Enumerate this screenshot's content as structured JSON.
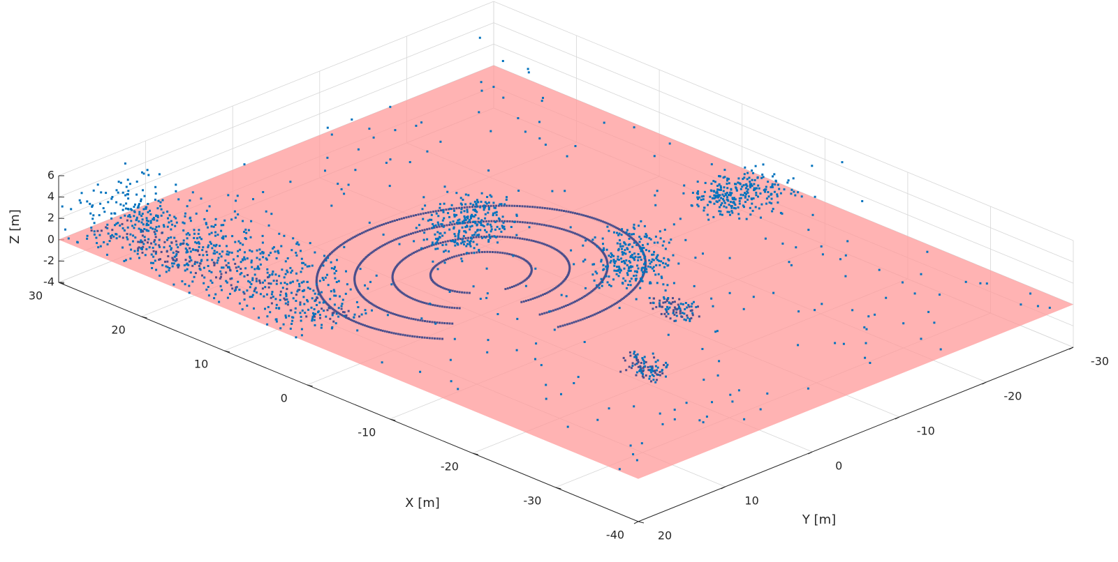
{
  "chart_data": {
    "type": "scatter",
    "title": "",
    "xlabel": "X [m]",
    "ylabel": "Y [m]",
    "zlabel": "Z [m]",
    "xlim": [
      -40,
      30
    ],
    "ylim": [
      -30,
      20
    ],
    "zlim": [
      -4,
      6
    ],
    "xticks": [
      "-40",
      "-30",
      "-20",
      "-10",
      "0",
      "10",
      "20",
      "30"
    ],
    "yticks": [
      "-30",
      "-20",
      "-10",
      "0",
      "10",
      "20"
    ],
    "zticks": [
      "-4",
      "-2",
      "0",
      "2",
      "4",
      "6"
    ],
    "grid": true,
    "view": "3d-isometric",
    "series": [
      {
        "kind": "ground-plane",
        "z": 0,
        "color": "#ff9999",
        "opacity": 0.75
      },
      {
        "kind": "lidar-point-cloud",
        "color": "#0072bd",
        "ground_points_color": "#4b4f8c",
        "features": [
          {
            "feature": "concentric scan rings",
            "center": [
              0,
              0
            ],
            "radii": [
              4,
              7,
              10,
              13
            ]
          },
          {
            "feature": "wall / building facade",
            "x_range": [
              0,
              30
            ],
            "y": 20,
            "z_range": [
              0,
              5
            ]
          },
          {
            "feature": "vegetation cluster",
            "x": 5,
            "y": -3,
            "z_range": [
              0,
              4
            ]
          },
          {
            "feature": "vegetation cluster",
            "x": -10,
            "y": -8,
            "z_range": [
              0,
              4
            ]
          },
          {
            "feature": "vegetation cluster",
            "x": -5,
            "y": -25,
            "z_range": [
              0,
              2
            ]
          },
          {
            "feature": "parked car",
            "x": -18,
            "y": -5,
            "z_range": [
              0,
              1.5
            ]
          },
          {
            "feature": "parked car",
            "x": -25,
            "y": 5,
            "z_range": [
              0,
              1.5
            ]
          }
        ]
      }
    ]
  }
}
